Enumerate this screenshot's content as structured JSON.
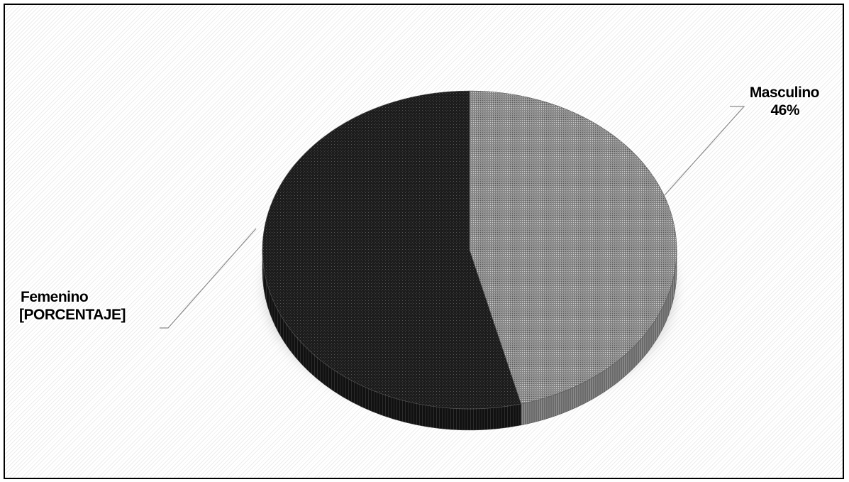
{
  "chart_data": {
    "type": "pie",
    "style": "3d-exploded-tilted",
    "title": "",
    "slices": [
      {
        "category": "Masculino",
        "percent_label": "46%",
        "value": 46,
        "color": "#8f8f8f"
      },
      {
        "category": "Femenino",
        "percent_label": "[PORCENTAJE]",
        "value": 54,
        "color": "#1c1c1c"
      }
    ],
    "legend": "none",
    "data_labels": "outside-with-leader-lines"
  }
}
